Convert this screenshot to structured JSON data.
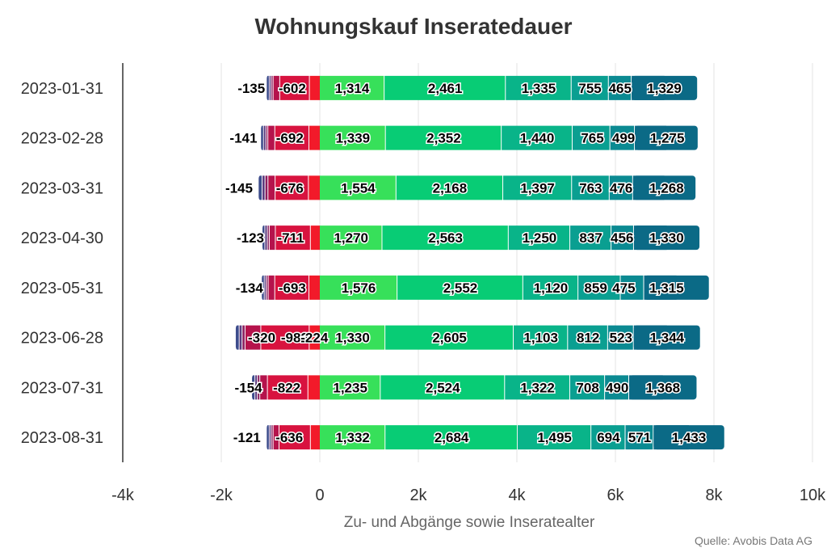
{
  "chart_data": {
    "type": "bar",
    "orientation": "horizontal",
    "stacked": true,
    "title": "Wohnungskauf Inseratedauer",
    "xlabel": "Zu- und Abgänge sowie Inseratealter",
    "ylabel": "",
    "source": "Quelle: Avobis Data AG",
    "xlim": [
      -4000,
      10000
    ],
    "x_ticks": [
      -4000,
      -2000,
      0,
      2000,
      4000,
      6000,
      8000,
      10000
    ],
    "x_tick_labels": [
      "-4k",
      "-2k",
      "0",
      "2k",
      "4k",
      "6k",
      "8k",
      "10k"
    ],
    "grid": "vertical",
    "categories": [
      "2023-01-31",
      "2023-02-28",
      "2023-03-31",
      "2023-04-30",
      "2023-05-31",
      "2023-06-28",
      "2023-07-31",
      "2023-08-31"
    ],
    "negative_series": [
      {
        "color": "#3d4c8c",
        "values": [
          -40,
          -40,
          -60,
          -40,
          -40,
          -60,
          -50,
          -40
        ]
      },
      {
        "color": "#5c3a7e",
        "values": [
          -40,
          -50,
          -60,
          -50,
          -40,
          -60,
          -50,
          -40
        ]
      },
      {
        "color": "#8b1f5f",
        "values": [
          -40,
          -40,
          -60,
          -40,
          -40,
          -60,
          -50,
          -40
        ]
      },
      {
        "color": "#b5134c",
        "values": [
          -135,
          -141,
          -145,
          -123,
          -134,
          -320,
          -154,
          -121
        ]
      },
      {
        "color": "#d8133f",
        "values": [
          -602,
          -692,
          -676,
          -711,
          -693,
          -982,
          -822,
          -636
        ]
      },
      {
        "color": "#f21a2a",
        "values": [
          -220,
          -230,
          -240,
          -200,
          -230,
          -224,
          -250,
          -200
        ]
      }
    ],
    "positive_series": [
      {
        "color": "#37e05a",
        "values": [
          1314,
          1339,
          1554,
          1270,
          1576,
          1330,
          1235,
          1332
        ]
      },
      {
        "color": "#08cc75",
        "values": [
          2461,
          2352,
          2168,
          2563,
          2552,
          2605,
          2524,
          2684
        ]
      },
      {
        "color": "#09b489",
        "values": [
          1335,
          1440,
          1397,
          1250,
          1120,
          1103,
          1322,
          1495
        ]
      },
      {
        "color": "#0a9f91",
        "values": [
          755,
          765,
          763,
          837,
          859,
          812,
          708,
          694
        ]
      },
      {
        "color": "#0b8a92",
        "values": [
          465,
          499,
          476,
          456,
          475,
          523,
          490,
          571
        ]
      },
      {
        "color": "#0b6a86",
        "values": [
          1329,
          1275,
          1268,
          1330,
          1315,
          1344,
          1368,
          1433
        ]
      }
    ],
    "data_labels": [
      [
        {
          "t": "-135",
          "x": -1390
        },
        {
          "t": "-602",
          "x": -560
        },
        {
          "t": "1,314",
          "x": 657
        },
        {
          "t": "2,461",
          "x": 2544
        },
        {
          "t": "1,335",
          "x": 4442
        },
        {
          "t": "755",
          "x": 5485
        },
        {
          "t": "465",
          "x": 6095
        },
        {
          "t": "1,329",
          "x": 6993
        }
      ],
      [
        {
          "t": "-141",
          "x": -1550
        },
        {
          "t": "-692",
          "x": -610
        },
        {
          "t": "1,339",
          "x": 670
        },
        {
          "t": "2,352",
          "x": 2515
        },
        {
          "t": "1,440",
          "x": 4411
        },
        {
          "t": "765",
          "x": 5533
        },
        {
          "t": "499",
          "x": 6165
        },
        {
          "t": "1,275",
          "x": 7052
        }
      ],
      [
        {
          "t": "-145",
          "x": -1640
        },
        {
          "t": "-676",
          "x": -610
        },
        {
          "t": "1,554",
          "x": 777
        },
        {
          "t": "2,168",
          "x": 2638
        },
        {
          "t": "1,397",
          "x": 4420
        },
        {
          "t": "763",
          "x": 5498
        },
        {
          "t": "476",
          "x": 6118
        },
        {
          "t": "1,268",
          "x": 7040
        }
      ],
      [
        {
          "t": "-123",
          "x": -1410
        },
        {
          "t": "-711",
          "x": -590
        },
        {
          "t": "1,270",
          "x": 635
        },
        {
          "t": "2,563",
          "x": 2552
        },
        {
          "t": "1,250",
          "x": 4459
        },
        {
          "t": "837",
          "x": 5502
        },
        {
          "t": "456",
          "x": 6135
        },
        {
          "t": "1,330",
          "x": 7040
        }
      ],
      [
        {
          "t": "-134",
          "x": -1430
        },
        {
          "t": "-693",
          "x": -560
        },
        {
          "t": "1,576",
          "x": 788
        },
        {
          "t": "2,552",
          "x": 2852
        },
        {
          "t": "1,120",
          "x": 4688
        },
        {
          "t": "859",
          "x": 5600
        },
        {
          "t": "475",
          "x": 6170
        },
        {
          "t": "1,315",
          "x": 7040
        }
      ],
      [
        {
          "t": "-320",
          "x": -1180
        },
        {
          "t": "-982",
          "x": -510
        },
        {
          "t": "-224",
          "x": -110
        },
        {
          "t": "1,330",
          "x": 665
        },
        {
          "t": "2,605",
          "x": 2633
        },
        {
          "t": "1,103",
          "x": 4487
        },
        {
          "t": "812",
          "x": 5445
        },
        {
          "t": "523",
          "x": 6112
        },
        {
          "t": "1,344",
          "x": 7047
        }
      ],
      [
        {
          "t": "-154",
          "x": -1450
        },
        {
          "t": "-822",
          "x": -670
        },
        {
          "t": "1,235",
          "x": 617
        },
        {
          "t": "2,524",
          "x": 2497
        },
        {
          "t": "1,322",
          "x": 4420
        },
        {
          "t": "708",
          "x": 5436
        },
        {
          "t": "490",
          "x": 6035
        },
        {
          "t": "1,368",
          "x": 6965
        }
      ],
      [
        {
          "t": "-121",
          "x": -1480
        },
        {
          "t": "-636",
          "x": -620
        },
        {
          "t": "1,332",
          "x": 666
        },
        {
          "t": "2,684",
          "x": 2674
        },
        {
          "t": "1,495",
          "x": 4764
        },
        {
          "t": "694",
          "x": 5859
        },
        {
          "t": "571",
          "x": 6492
        },
        {
          "t": "1,433",
          "x": 7493
        }
      ]
    ]
  }
}
